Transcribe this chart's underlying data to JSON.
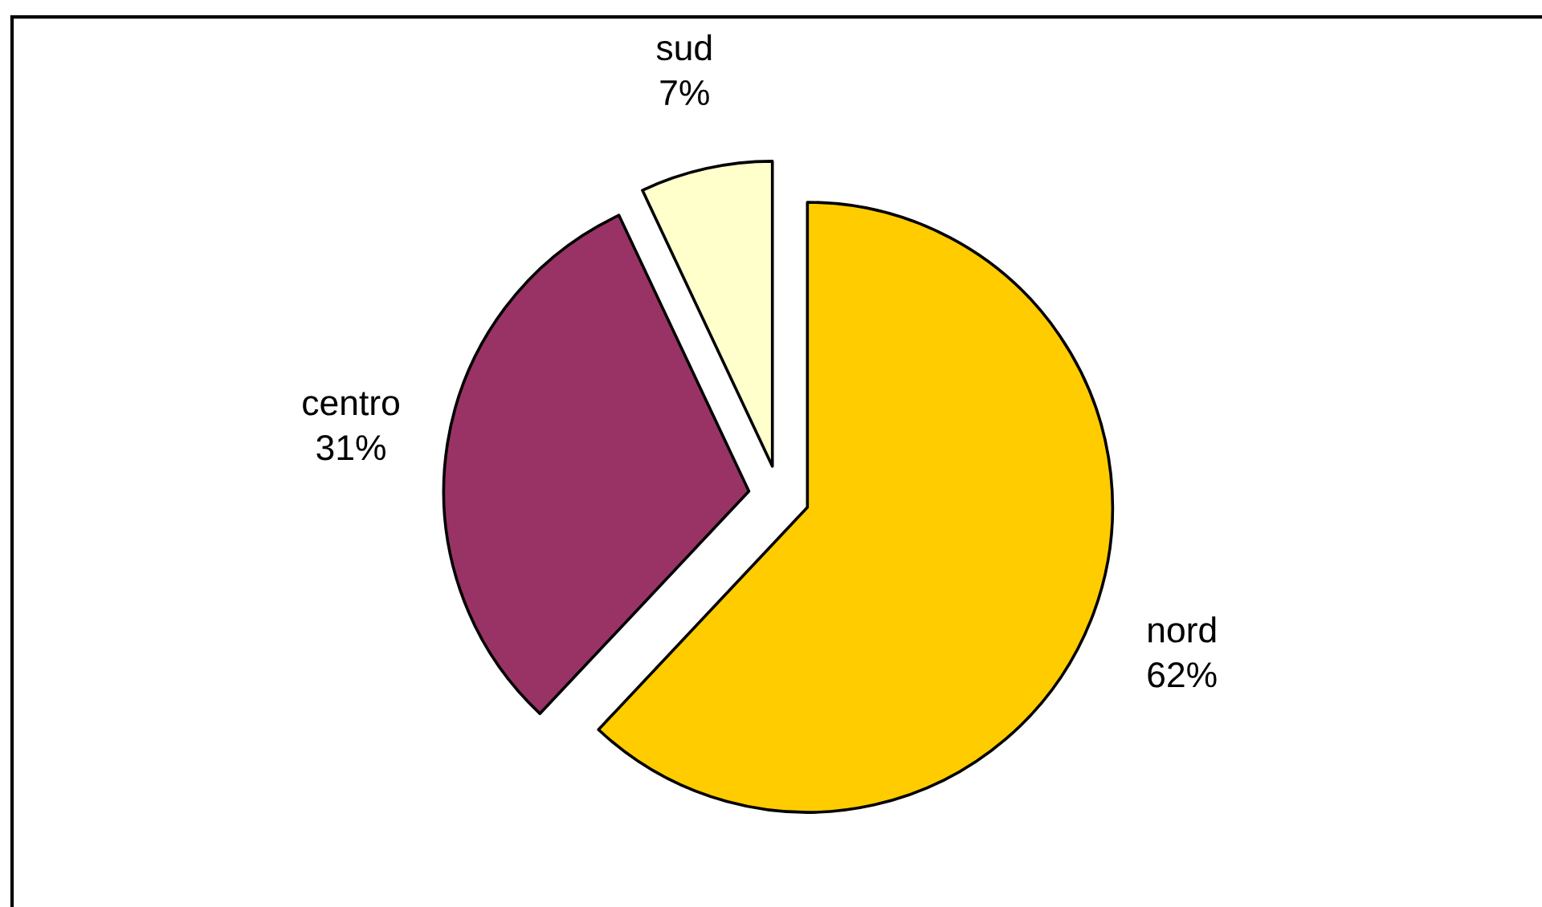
{
  "chart_data": {
    "type": "pie",
    "categories": [
      "nord",
      "centro",
      "sud"
    ],
    "values": [
      62,
      31,
      7
    ],
    "colors": [
      "#ffcc00",
      "#993366",
      "#ffffcc"
    ],
    "value_labels": [
      "62%",
      "31%",
      "7%"
    ]
  }
}
